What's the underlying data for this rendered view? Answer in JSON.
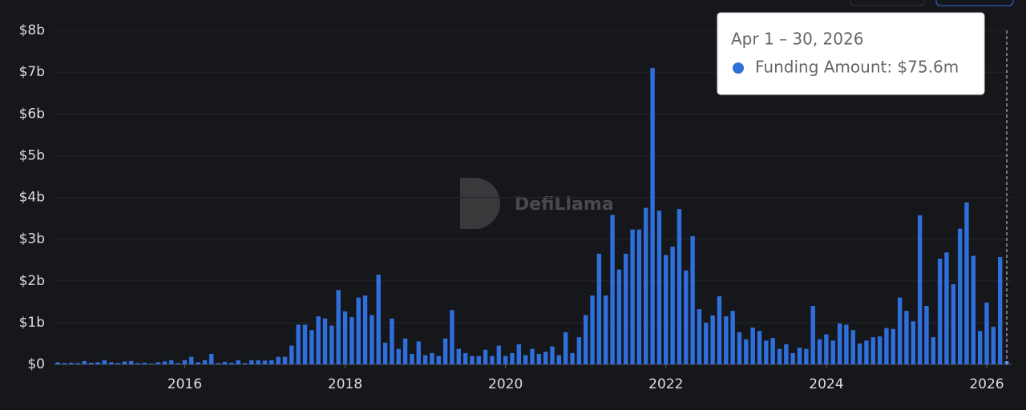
{
  "chart_data": {
    "type": "bar",
    "watermark": "DefiLlama",
    "categories": [
      null,
      null,
      null,
      null,
      null,
      null,
      null,
      null,
      null,
      null,
      null,
      null,
      null,
      null,
      null,
      null,
      null,
      null,
      null,
      "2016",
      null,
      null,
      null,
      null,
      null,
      null,
      null,
      null,
      null,
      null,
      null,
      null,
      null,
      null,
      null,
      null,
      null,
      null,
      null,
      null,
      null,
      null,
      null,
      "2018",
      null,
      null,
      null,
      null,
      null,
      null,
      null,
      null,
      null,
      null,
      null,
      null,
      null,
      null,
      null,
      null,
      null,
      null,
      null,
      null,
      null,
      null,
      null,
      "2020",
      null,
      null,
      null,
      null,
      null,
      null,
      null,
      null,
      null,
      null,
      null,
      null,
      null,
      null,
      null,
      null,
      null,
      null,
      null,
      null,
      null,
      null,
      null,
      "2022",
      null,
      null,
      null,
      null,
      null,
      null,
      null,
      null,
      null,
      null,
      null,
      null,
      null,
      null,
      null,
      null,
      null,
      null,
      null,
      null,
      null,
      null,
      null,
      "2024",
      null,
      null,
      null,
      null,
      null,
      null,
      null,
      null,
      null,
      null,
      null,
      null,
      null,
      null,
      null,
      null,
      null,
      null,
      null,
      null,
      null,
      null,
      null,
      "2026",
      null,
      null,
      null
    ],
    "values": [
      0.05,
      0.03,
      0.04,
      0.03,
      0.08,
      0.04,
      0.05,
      0.1,
      0.05,
      0.03,
      0.07,
      0.08,
      0.03,
      0.04,
      0.02,
      0.05,
      0.07,
      0.1,
      0.03,
      0.1,
      0.18,
      0.05,
      0.1,
      0.25,
      0.03,
      0.06,
      0.04,
      0.1,
      0.03,
      0.1,
      0.1,
      0.09,
      0.1,
      0.18,
      0.18,
      0.45,
      0.95,
      0.95,
      0.82,
      1.15,
      1.1,
      0.93,
      1.78,
      1.27,
      1.13,
      1.6,
      1.65,
      1.18,
      2.15,
      0.52,
      1.1,
      0.37,
      0.62,
      0.25,
      0.55,
      0.22,
      0.27,
      0.2,
      0.62,
      1.3,
      0.37,
      0.27,
      0.2,
      0.2,
      0.35,
      0.2,
      0.45,
      0.2,
      0.27,
      0.48,
      0.22,
      0.37,
      0.25,
      0.3,
      0.43,
      0.22,
      0.77,
      0.27,
      0.65,
      1.18,
      1.65,
      2.65,
      1.65,
      3.58,
      2.27,
      2.65,
      3.23,
      3.23,
      3.75,
      7.1,
      3.68,
      2.62,
      2.82,
      3.72,
      2.25,
      3.07,
      1.32,
      1.0,
      1.17,
      1.63,
      1.15,
      1.28,
      0.77,
      0.6,
      0.88,
      0.8,
      0.57,
      0.63,
      0.37,
      0.48,
      0.27,
      0.4,
      0.37,
      1.4,
      0.6,
      0.72,
      0.57,
      0.98,
      0.95,
      0.82,
      0.5,
      0.57,
      0.65,
      0.67,
      0.87,
      0.85,
      1.6,
      1.28,
      1.03,
      3.57,
      1.4,
      0.65,
      2.53,
      2.68,
      1.92,
      3.25,
      3.88,
      2.6,
      0.8,
      1.48,
      0.9,
      2.57,
      0.0756
    ],
    "color": "#2f6fdc",
    "ylim": [
      0,
      8
    ],
    "yticks": [
      {
        "value": 0,
        "label": "$0"
      },
      {
        "value": 1,
        "label": "$1b"
      },
      {
        "value": 2,
        "label": "$2b"
      },
      {
        "value": 3,
        "label": "$3b"
      },
      {
        "value": 4,
        "label": "$4b"
      },
      {
        "value": 5,
        "label": "$5b"
      },
      {
        "value": 6,
        "label": "$6b"
      },
      {
        "value": 7,
        "label": "$7b"
      },
      {
        "value": 8,
        "label": "$8b"
      }
    ],
    "grid": true,
    "tooltip": {
      "title": "Apr 1 – 30, 2026",
      "text": "Funding Amount: $75.6m"
    }
  }
}
